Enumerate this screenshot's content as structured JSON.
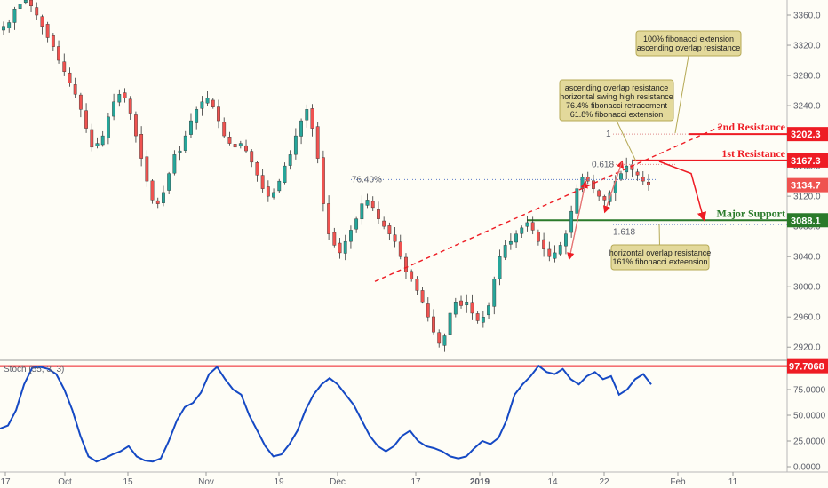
{
  "chart_data": [
    {
      "type": "candlestick",
      "instrument_scale": "price",
      "ylim": [
        2905,
        3380
      ],
      "y_ticks": [
        "3360.0",
        "3320.0",
        "3280.0",
        "3240.0",
        "3200.0",
        "3160.0",
        "3120.0",
        "3080.0",
        "3040.0",
        "3000.0",
        "2960.0",
        "2920.0"
      ],
      "y_tick_values": [
        3360,
        3320,
        3280,
        3240,
        3200,
        3160,
        3120,
        3080,
        3040,
        3000,
        2960,
        2920
      ],
      "x_ticks": [
        "17",
        "Oct",
        "15",
        "Nov",
        "19",
        "Dec",
        "17",
        "2019",
        "14",
        "22",
        "Feb",
        "11"
      ],
      "x_tick_bold": "2019",
      "closes": [
        3345,
        3350,
        3368,
        3375,
        3380,
        3372,
        3360,
        3345,
        3330,
        3318,
        3300,
        3285,
        3270,
        3255,
        3235,
        3210,
        3185,
        3190,
        3200,
        3225,
        3245,
        3255,
        3250,
        3230,
        3200,
        3170,
        3140,
        3115,
        3110,
        3125,
        3150,
        3175,
        3180,
        3200,
        3220,
        3235,
        3245,
        3250,
        3238,
        3220,
        3200,
        3190,
        3185,
        3190,
        3180,
        3165,
        3148,
        3130,
        3120,
        3125,
        3140,
        3160,
        3175,
        3200,
        3220,
        3235,
        3210,
        3170,
        3110,
        3070,
        3055,
        3045,
        3060,
        3075,
        3090,
        3110,
        3115,
        3105,
        3090,
        3080,
        3070,
        3060,
        3040,
        3020,
        3010,
        2995,
        2980,
        2960,
        2940,
        2925,
        2935,
        2965,
        2980,
        2975,
        2980,
        2965,
        2955,
        2960,
        2975,
        3010,
        3040,
        3055,
        3060,
        3070,
        3078,
        3085,
        3075,
        3060,
        3050,
        3040,
        3045,
        3055,
        3070,
        3100,
        3130,
        3145,
        3140,
        3130,
        3120,
        3115,
        3125,
        3140,
        3150,
        3160,
        3155,
        3148,
        3140,
        3134.7
      ],
      "levels": [
        {
          "name": "2nd Resistance",
          "value": 3202.3,
          "label": "3202.3",
          "color": "#ee1c24"
        },
        {
          "name": "1st Resistance",
          "value": 3167.3,
          "label": "3167.3",
          "color": "#ee1c24"
        },
        {
          "name": "Major Support",
          "value": 3088.1,
          "label": "3088.1",
          "color": "#2a7a2a"
        },
        {
          "name": "",
          "value": 3134.7,
          "label": "3134.7",
          "color": "#ef5350"
        }
      ],
      "fib_labels": {
        "level_76": "76.40%",
        "level_0618": "0.618",
        "level_1": "1",
        "level_1618": "1.618"
      },
      "annotations": {
        "box1": [
          "100% fibonacci extension",
          "ascending overlap resistance"
        ],
        "box2": [
          "ascending overlap resistance",
          "horizontal swing high resistance",
          "76.4% fibonacci retracement",
          "61.8% fibonacci extension"
        ],
        "box3": [
          "horizontal overlap resistance",
          "161% fibonacci exteension"
        ]
      },
      "colors": {
        "up": "#26a69a",
        "down": "#ef5350",
        "wick": "#333333",
        "trend": "#ee1c24",
        "annotation_box": "#e3d99b"
      }
    },
    {
      "type": "line",
      "title": "Stoch (55, 3, 3)",
      "ylim": [
        0,
        100
      ],
      "y_ticks": [
        "75.0000",
        "50.0000",
        "25.0000",
        "0.0000"
      ],
      "y_tick_values": [
        75,
        50,
        25,
        0
      ],
      "level": {
        "value": 97.7068,
        "label": "97.7068",
        "color": "#ee1c24"
      },
      "values": [
        37,
        40,
        55,
        80,
        96,
        97,
        95,
        90,
        75,
        55,
        30,
        10,
        5,
        8,
        12,
        15,
        20,
        10,
        6,
        5,
        8,
        25,
        45,
        58,
        62,
        72,
        90,
        97,
        85,
        75,
        70,
        50,
        35,
        20,
        10,
        12,
        22,
        35,
        55,
        70,
        80,
        86,
        80,
        70,
        60,
        45,
        30,
        20,
        15,
        20,
        30,
        35,
        25,
        20,
        18,
        15,
        10,
        8,
        10,
        18,
        25,
        22,
        28,
        45,
        70,
        80,
        88,
        98,
        92,
        90,
        95,
        85,
        80,
        88,
        92,
        85,
        88,
        70,
        75,
        85,
        90,
        80
      ],
      "color": "#1549c4"
    }
  ]
}
